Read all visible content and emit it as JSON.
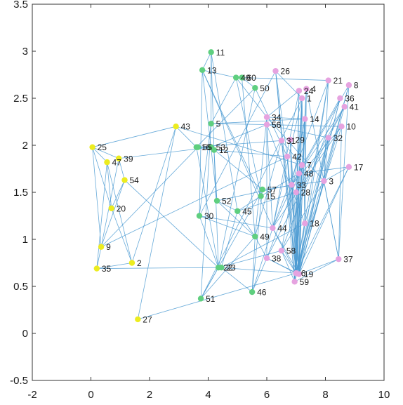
{
  "chart_data": {
    "type": "scatter",
    "title": "",
    "xlabel": "",
    "ylabel": "",
    "xlim": [
      -2,
      10
    ],
    "ylim": [
      -0.5,
      3.5
    ],
    "xticks": [
      "-2",
      "0",
      "2",
      "4",
      "6",
      "8",
      "10"
    ],
    "yticks": [
      "-0.5",
      "0",
      "0.5",
      "1",
      "1.5",
      "2",
      "2.5",
      "3",
      "3.5"
    ],
    "grid": false,
    "colors": {
      "yellow": "#ecec1f",
      "green": "#5fcf7f",
      "pink": "#e6a3e0",
      "edge": "#4c9bd2",
      "axis": "#333333"
    },
    "nodes": [
      {
        "id": "1",
        "x": 7.2,
        "y": 2.5,
        "group": "pink"
      },
      {
        "id": "2",
        "x": 1.4,
        "y": 0.75,
        "group": "yellow"
      },
      {
        "id": "3",
        "x": 7.95,
        "y": 1.62,
        "group": "pink"
      },
      {
        "id": "4",
        "x": 7.35,
        "y": 2.6,
        "group": "pink"
      },
      {
        "id": "5",
        "x": 4.1,
        "y": 2.23,
        "group": "green"
      },
      {
        "id": "6",
        "x": 7.0,
        "y": 0.64,
        "group": "pink"
      },
      {
        "id": "7",
        "x": 7.2,
        "y": 1.79,
        "group": "pink"
      },
      {
        "id": "8",
        "x": 8.8,
        "y": 2.64,
        "group": "pink"
      },
      {
        "id": "9",
        "x": 0.35,
        "y": 0.92,
        "group": "yellow"
      },
      {
        "id": "10",
        "x": 8.55,
        "y": 2.2,
        "group": "pink"
      },
      {
        "id": "11",
        "x": 4.1,
        "y": 2.99,
        "group": "green"
      },
      {
        "id": "12",
        "x": 4.2,
        "y": 1.95,
        "group": "green"
      },
      {
        "id": "13",
        "x": 3.8,
        "y": 2.8,
        "group": "green"
      },
      {
        "id": "14",
        "x": 7.3,
        "y": 2.28,
        "group": "pink"
      },
      {
        "id": "15",
        "x": 5.8,
        "y": 1.46,
        "group": "green"
      },
      {
        "id": "16",
        "x": 3.6,
        "y": 1.98,
        "group": "green"
      },
      {
        "id": "17",
        "x": 8.8,
        "y": 1.77,
        "group": "pink"
      },
      {
        "id": "18",
        "x": 7.3,
        "y": 1.17,
        "group": "pink"
      },
      {
        "id": "19",
        "x": 7.1,
        "y": 0.63,
        "group": "pink"
      },
      {
        "id": "20",
        "x": 0.7,
        "y": 1.33,
        "group": "yellow"
      },
      {
        "id": "21",
        "x": 8.1,
        "y": 2.69,
        "group": "pink"
      },
      {
        "id": "22",
        "x": 4.35,
        "y": 0.7,
        "group": "green"
      },
      {
        "id": "23",
        "x": 4.45,
        "y": 0.7,
        "group": "green"
      },
      {
        "id": "24",
        "x": 7.1,
        "y": 2.58,
        "group": "pink"
      },
      {
        "id": "25",
        "x": 0.05,
        "y": 1.98,
        "group": "yellow"
      },
      {
        "id": "26",
        "x": 6.3,
        "y": 2.79,
        "group": "pink"
      },
      {
        "id": "27",
        "x": 1.6,
        "y": 0.15,
        "group": "yellow"
      },
      {
        "id": "28",
        "x": 7.0,
        "y": 1.5,
        "group": "pink"
      },
      {
        "id": "29",
        "x": 6.8,
        "y": 2.06,
        "group": "pink"
      },
      {
        "id": "30",
        "x": 3.7,
        "y": 1.25,
        "group": "green"
      },
      {
        "id": "31",
        "x": 6.5,
        "y": 2.05,
        "group": "pink"
      },
      {
        "id": "32",
        "x": 8.1,
        "y": 2.08,
        "group": "pink"
      },
      {
        "id": "33",
        "x": 6.85,
        "y": 1.58,
        "group": "pink"
      },
      {
        "id": "34",
        "x": 6.0,
        "y": 2.3,
        "group": "pink"
      },
      {
        "id": "35",
        "x": 0.2,
        "y": 0.69,
        "group": "yellow"
      },
      {
        "id": "36",
        "x": 8.5,
        "y": 2.5,
        "group": "pink"
      },
      {
        "id": "37",
        "x": 8.45,
        "y": 0.79,
        "group": "pink"
      },
      {
        "id": "38",
        "x": 6.0,
        "y": 0.8,
        "group": "pink"
      },
      {
        "id": "39",
        "x": 0.95,
        "y": 1.86,
        "group": "yellow"
      },
      {
        "id": "40",
        "x": 4.95,
        "y": 2.72,
        "group": "green"
      },
      {
        "id": "41",
        "x": 8.65,
        "y": 2.41,
        "group": "pink"
      },
      {
        "id": "42",
        "x": 6.7,
        "y": 1.88,
        "group": "pink"
      },
      {
        "id": "43",
        "x": 2.9,
        "y": 2.2,
        "group": "yellow"
      },
      {
        "id": "44",
        "x": 6.2,
        "y": 1.12,
        "group": "pink"
      },
      {
        "id": "45",
        "x": 5.0,
        "y": 1.3,
        "group": "green"
      },
      {
        "id": "46",
        "x": 5.5,
        "y": 0.44,
        "group": "green"
      },
      {
        "id": "47",
        "x": 0.55,
        "y": 1.82,
        "group": "yellow"
      },
      {
        "id": "48",
        "x": 7.1,
        "y": 1.7,
        "group": "pink"
      },
      {
        "id": "49",
        "x": 5.6,
        "y": 1.03,
        "group": "green"
      },
      {
        "id": "50",
        "x": 5.6,
        "y": 2.61,
        "group": "green"
      },
      {
        "id": "51",
        "x": 3.75,
        "y": 0.37,
        "group": "green"
      },
      {
        "id": "52",
        "x": 4.3,
        "y": 1.41,
        "group": "green"
      },
      {
        "id": "53",
        "x": 4.1,
        "y": 1.98,
        "group": "green"
      },
      {
        "id": "54",
        "x": 1.15,
        "y": 1.63,
        "group": "yellow"
      },
      {
        "id": "55",
        "x": 3.65,
        "y": 1.98,
        "group": "green"
      },
      {
        "id": "56",
        "x": 6.0,
        "y": 2.22,
        "group": "pink"
      },
      {
        "id": "57",
        "x": 5.85,
        "y": 1.53,
        "group": "green"
      },
      {
        "id": "58",
        "x": 6.5,
        "y": 0.88,
        "group": "pink"
      },
      {
        "id": "59",
        "x": 6.95,
        "y": 0.55,
        "group": "pink"
      },
      {
        "id": "60",
        "x": 5.15,
        "y": 2.72,
        "group": "green"
      }
    ],
    "edges": [
      [
        "25",
        "39"
      ],
      [
        "25",
        "47"
      ],
      [
        "25",
        "20"
      ],
      [
        "25",
        "9"
      ],
      [
        "25",
        "43"
      ],
      [
        "39",
        "9"
      ],
      [
        "39",
        "54"
      ],
      [
        "47",
        "20"
      ],
      [
        "47",
        "35"
      ],
      [
        "47",
        "2"
      ],
      [
        "54",
        "9"
      ],
      [
        "54",
        "20"
      ],
      [
        "54",
        "22"
      ],
      [
        "9",
        "35"
      ],
      [
        "9",
        "55"
      ],
      [
        "9",
        "42"
      ],
      [
        "35",
        "22"
      ],
      [
        "35",
        "2"
      ],
      [
        "2",
        "43"
      ],
      [
        "2",
        "20"
      ],
      [
        "27",
        "43"
      ],
      [
        "27",
        "6"
      ],
      [
        "43",
        "7"
      ],
      [
        "43",
        "16"
      ],
      [
        "39",
        "53"
      ],
      [
        "11",
        "13"
      ],
      [
        "11",
        "5"
      ],
      [
        "11",
        "12"
      ],
      [
        "11",
        "45"
      ],
      [
        "13",
        "52"
      ],
      [
        "13",
        "30"
      ],
      [
        "13",
        "40"
      ],
      [
        "40",
        "60"
      ],
      [
        "40",
        "15"
      ],
      [
        "40",
        "5"
      ],
      [
        "60",
        "50"
      ],
      [
        "60",
        "49"
      ],
      [
        "50",
        "22"
      ],
      [
        "50",
        "16"
      ],
      [
        "5",
        "51"
      ],
      [
        "5",
        "30"
      ],
      [
        "16",
        "55"
      ],
      [
        "16",
        "53"
      ],
      [
        "16",
        "22"
      ],
      [
        "55",
        "12"
      ],
      [
        "53",
        "12"
      ],
      [
        "12",
        "52"
      ],
      [
        "53",
        "57"
      ],
      [
        "52",
        "45"
      ],
      [
        "52",
        "49"
      ],
      [
        "45",
        "15"
      ],
      [
        "45",
        "49"
      ],
      [
        "30",
        "22"
      ],
      [
        "30",
        "49"
      ],
      [
        "22",
        "23"
      ],
      [
        "23",
        "46"
      ],
      [
        "22",
        "51"
      ],
      [
        "51",
        "57"
      ],
      [
        "51",
        "49"
      ],
      [
        "46",
        "49"
      ],
      [
        "46",
        "57"
      ],
      [
        "57",
        "15"
      ],
      [
        "15",
        "13"
      ],
      [
        "22",
        "12"
      ],
      [
        "23",
        "45"
      ],
      [
        "49",
        "38"
      ],
      [
        "49",
        "34"
      ],
      [
        "49",
        "31"
      ],
      [
        "46",
        "44"
      ],
      [
        "51",
        "1"
      ],
      [
        "30",
        "26"
      ],
      [
        "5",
        "14"
      ],
      [
        "12",
        "42"
      ],
      [
        "52",
        "33"
      ],
      [
        "45",
        "28"
      ],
      [
        "15",
        "48"
      ],
      [
        "23",
        "6"
      ],
      [
        "53",
        "56"
      ],
      [
        "40",
        "34"
      ],
      [
        "60",
        "21"
      ],
      [
        "30",
        "44"
      ],
      [
        "22",
        "58"
      ],
      [
        "23",
        "18"
      ],
      [
        "57",
        "3"
      ],
      [
        "46",
        "38"
      ],
      [
        "5",
        "56"
      ],
      [
        "50",
        "42"
      ],
      [
        "16",
        "31"
      ],
      [
        "13",
        "44"
      ],
      [
        "1",
        "6"
      ],
      [
        "1",
        "19"
      ],
      [
        "1",
        "59"
      ],
      [
        "1",
        "18"
      ],
      [
        "1",
        "28"
      ],
      [
        "4",
        "6"
      ],
      [
        "4",
        "37"
      ],
      [
        "4",
        "19"
      ],
      [
        "24",
        "59"
      ],
      [
        "24",
        "44"
      ],
      [
        "14",
        "6"
      ],
      [
        "14",
        "19"
      ],
      [
        "14",
        "58"
      ],
      [
        "14",
        "18"
      ],
      [
        "21",
        "6"
      ],
      [
        "21",
        "19"
      ],
      [
        "21",
        "3"
      ],
      [
        "8",
        "19"
      ],
      [
        "8",
        "37"
      ],
      [
        "8",
        "48"
      ],
      [
        "36",
        "6"
      ],
      [
        "36",
        "59"
      ],
      [
        "36",
        "33"
      ],
      [
        "41",
        "19"
      ],
      [
        "41",
        "38"
      ],
      [
        "41",
        "48"
      ],
      [
        "10",
        "6"
      ],
      [
        "10",
        "37"
      ],
      [
        "10",
        "44"
      ],
      [
        "32",
        "19"
      ],
      [
        "32",
        "6"
      ],
      [
        "32",
        "3"
      ],
      [
        "17",
        "3"
      ],
      [
        "17",
        "6"
      ],
      [
        "17",
        "48"
      ],
      [
        "3",
        "19"
      ],
      [
        "3",
        "37"
      ],
      [
        "3",
        "58"
      ],
      [
        "7",
        "6"
      ],
      [
        "7",
        "19"
      ],
      [
        "7",
        "59"
      ],
      [
        "7",
        "44"
      ],
      [
        "48",
        "6"
      ],
      [
        "48",
        "19"
      ],
      [
        "48",
        "38"
      ],
      [
        "42",
        "6"
      ],
      [
        "42",
        "59"
      ],
      [
        "33",
        "19"
      ],
      [
        "33",
        "6"
      ],
      [
        "28",
        "19"
      ],
      [
        "18",
        "6"
      ],
      [
        "18",
        "19"
      ],
      [
        "44",
        "19"
      ],
      [
        "44",
        "6"
      ],
      [
        "58",
        "59"
      ],
      [
        "58",
        "6"
      ],
      [
        "38",
        "19"
      ],
      [
        "38",
        "6"
      ],
      [
        "26",
        "6"
      ],
      [
        "26",
        "59"
      ],
      [
        "26",
        "1"
      ],
      [
        "34",
        "14"
      ],
      [
        "34",
        "24"
      ],
      [
        "56",
        "10"
      ],
      [
        "56",
        "32"
      ],
      [
        "31",
        "7"
      ],
      [
        "29",
        "33"
      ],
      [
        "29",
        "6"
      ],
      [
        "37",
        "59"
      ],
      [
        "37",
        "19"
      ],
      [
        "34",
        "3"
      ],
      [
        "56",
        "18"
      ],
      [
        "31",
        "6"
      ],
      [
        "42",
        "19"
      ],
      [
        "28",
        "59"
      ],
      [
        "24",
        "6"
      ],
      [
        "4",
        "18"
      ],
      [
        "21",
        "44"
      ],
      [
        "8",
        "59"
      ],
      [
        "36",
        "58"
      ],
      [
        "41",
        "28"
      ],
      [
        "10",
        "33"
      ],
      [
        "32",
        "18"
      ],
      [
        "17",
        "19"
      ],
      [
        "14",
        "33"
      ],
      [
        "1",
        "44"
      ],
      [
        "26",
        "42"
      ],
      [
        "34",
        "38"
      ],
      [
        "56",
        "44"
      ],
      [
        "29",
        "19"
      ]
    ]
  }
}
